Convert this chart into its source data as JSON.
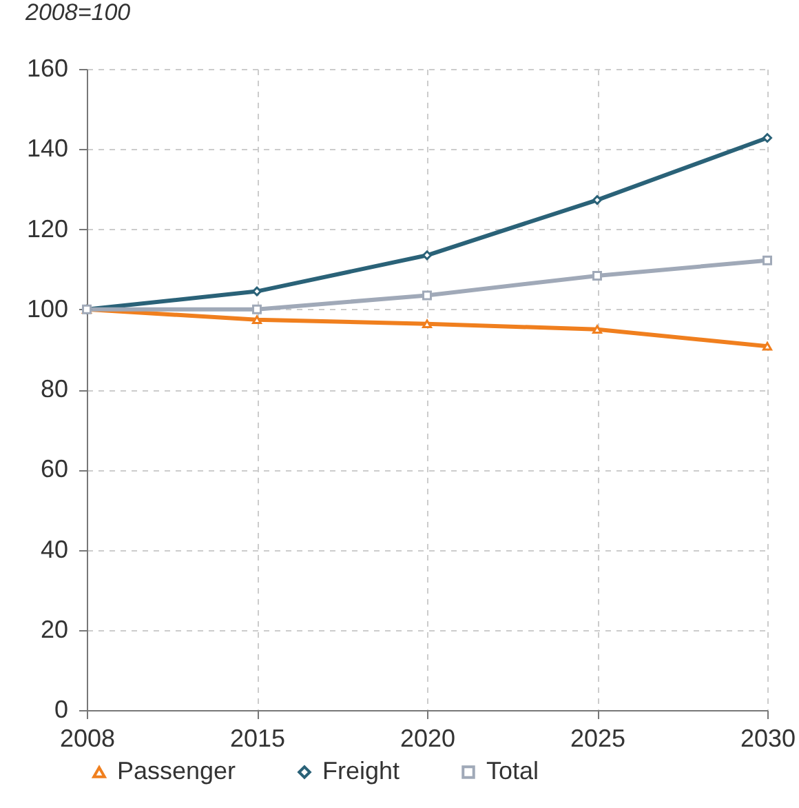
{
  "chart_data": {
    "type": "line",
    "ylabel": "2008=100",
    "categories": [
      "2008",
      "2015",
      "2020",
      "2025",
      "2030"
    ],
    "series": [
      {
        "name": "Passenger",
        "color": "#f07f1e",
        "marker": "triangle",
        "values": [
          100,
          97.4,
          96.4,
          95,
          90.8
        ]
      },
      {
        "name": "Freight",
        "color": "#2a6278",
        "marker": "diamond",
        "values": [
          100,
          104.5,
          113.5,
          127.3,
          142.8
        ]
      },
      {
        "name": "Total",
        "color": "#a0a9b8",
        "marker": "square",
        "values": [
          100,
          100,
          103.5,
          108.4,
          112.2
        ]
      }
    ],
    "ylim": [
      0,
      160
    ],
    "yticks": [
      0,
      20,
      40,
      60,
      80,
      100,
      120,
      140,
      160
    ],
    "grid": true,
    "legend": "bottom",
    "line_style": "solid"
  }
}
